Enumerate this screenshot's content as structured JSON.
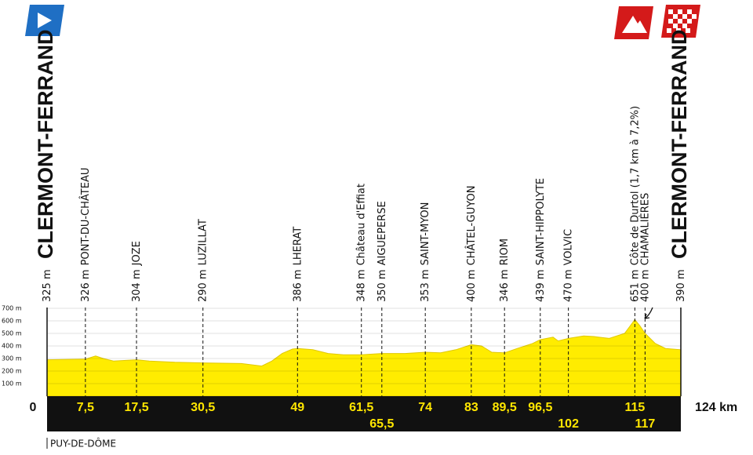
{
  "chart_data": {
    "type": "area",
    "x": [
      0,
      7.5,
      9.5,
      11,
      13,
      17.5,
      20,
      25,
      30.5,
      38,
      40,
      42,
      44,
      46,
      48,
      49,
      52,
      55,
      58,
      61.5,
      65.5,
      70,
      74,
      77,
      80,
      83,
      85,
      87,
      89.5,
      92,
      95,
      96.5,
      99,
      100,
      102,
      105,
      107,
      110,
      113,
      115,
      116,
      117,
      119,
      121,
      124
    ],
    "values": [
      290,
      295,
      320,
      300,
      280,
      290,
      280,
      270,
      265,
      260,
      250,
      240,
      280,
      340,
      375,
      380,
      370,
      340,
      330,
      330,
      340,
      340,
      350,
      345,
      370,
      410,
      400,
      350,
      345,
      380,
      420,
      450,
      470,
      440,
      460,
      480,
      475,
      460,
      500,
      610,
      560,
      500,
      420,
      380,
      370
    ],
    "color": "#ffec00",
    "xlim": [
      0,
      124
    ],
    "ylim": [
      0,
      700
    ],
    "yticks": [
      {
        "value": 100,
        "label": "100 m"
      },
      {
        "value": 200,
        "label": "200 m"
      },
      {
        "value": 300,
        "label": "300 m"
      },
      {
        "value": 400,
        "label": "400 m"
      },
      {
        "value": 500,
        "label": "500 m"
      },
      {
        "value": 600,
        "label": "600 m"
      },
      {
        "value": 700,
        "label": "700 m"
      }
    ],
    "grid": true,
    "waypoints": [
      {
        "km": 0,
        "km_label": "0",
        "elevation_label": "325 m",
        "name": "CLERMONT-FERRAND"
      },
      {
        "km": 7.5,
        "km_label": "7,5",
        "elevation_label": "326 m",
        "name": "PONT-DU-CHÂTEAU"
      },
      {
        "km": 17.5,
        "km_label": "17,5",
        "elevation_label": "304 m",
        "name": "JOZE"
      },
      {
        "km": 30.5,
        "km_label": "30,5",
        "elevation_label": "290 m",
        "name": "LUZILLAT"
      },
      {
        "km": 49,
        "km_label": "49",
        "elevation_label": "386 m",
        "name": "LHERAT"
      },
      {
        "km": 61.5,
        "km_label": "61,5",
        "elevation_label": "348 m",
        "name": "Château d'Effiat"
      },
      {
        "km": 65.5,
        "km_label": "65,5",
        "elevation_label": "350 m",
        "name": "AIGUEPERSE"
      },
      {
        "km": 74,
        "km_label": "74",
        "elevation_label": "353 m",
        "name": "SAINT-MYON"
      },
      {
        "km": 83,
        "km_label": "83",
        "elevation_label": "400 m",
        "name": "CHÂTEL-GUYON"
      },
      {
        "km": 89.5,
        "km_label": "89,5",
        "elevation_label": "346 m",
        "name": "RIOM"
      },
      {
        "km": 96.5,
        "km_label": "96,5",
        "elevation_label": "439 m",
        "name": "SAINT-HIPPOLYTE"
      },
      {
        "km": 102,
        "km_label": "102",
        "elevation_label": "470 m",
        "name": "VOLVIC"
      },
      {
        "km": 115,
        "km_label": "115",
        "elevation_label": "651 m",
        "name": "Côte de Durtol (1,7 km à 7,2%)"
      },
      {
        "km": 117,
        "km_label": "117",
        "elevation_label": "400 m",
        "name": "CHAMALIÈRES"
      },
      {
        "km": 124,
        "km_label": "124 km",
        "elevation_label": "390 m",
        "name": "CLERMONT-FERRAND"
      }
    ],
    "footer": "PUY-DE-DÔME"
  }
}
